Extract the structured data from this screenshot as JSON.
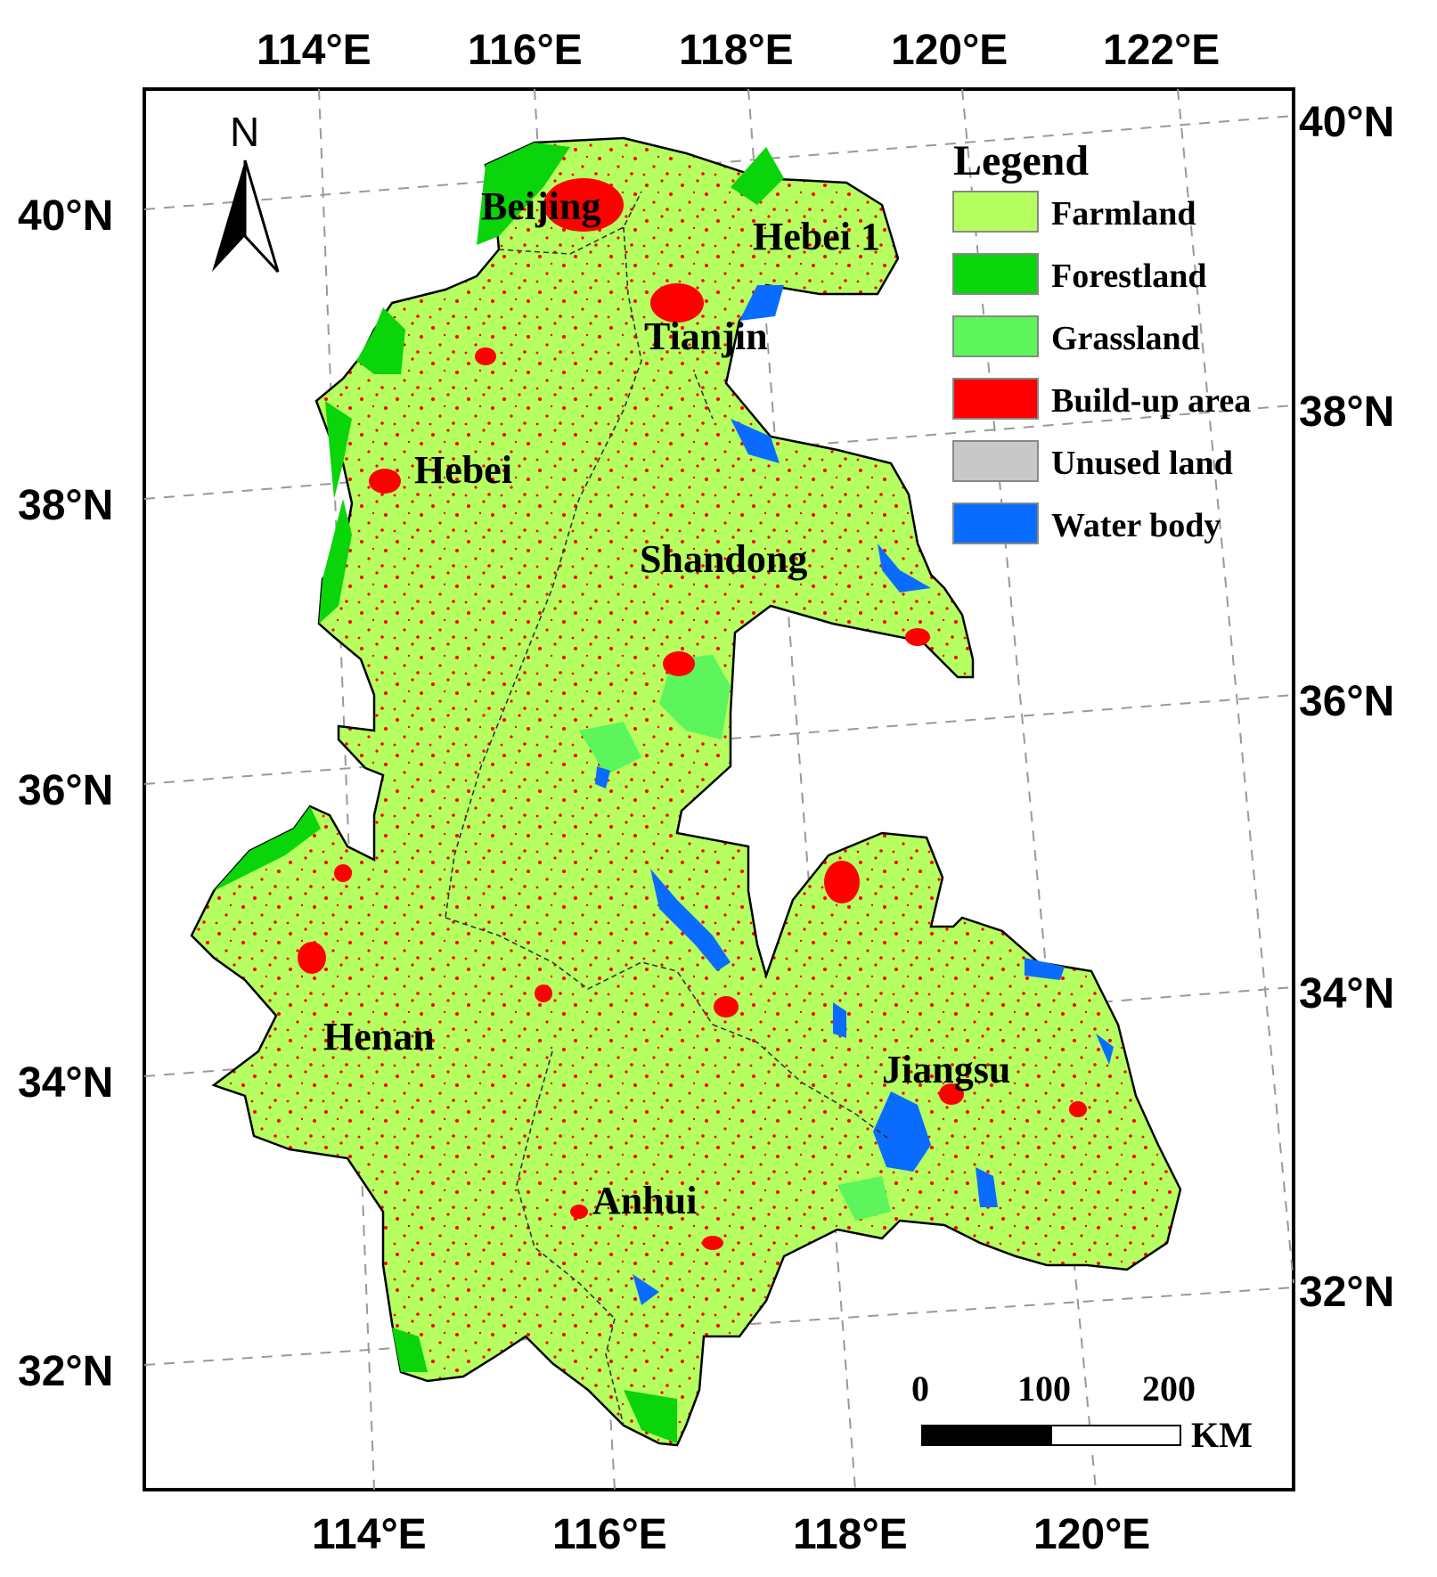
{
  "map": {
    "graticule_top": [
      "114°E",
      "116°E",
      "118°E",
      "120°E",
      "122°E"
    ],
    "graticule_bottom": [
      "114°E",
      "116°E",
      "118°E",
      "120°E"
    ],
    "graticule_left": [
      "40°N",
      "38°N",
      "36°N",
      "34°N",
      "32°N"
    ],
    "graticule_right": [
      "40°N",
      "38°N",
      "36°N",
      "34°N",
      "32°N"
    ],
    "north_arrow": {
      "letter": "N",
      "icon": "north-arrow-icon"
    },
    "regions": {
      "beijing": "Beijing",
      "hebei_ne": "Hebei 1",
      "tianjin": "Tianjin",
      "hebei": "Hebei",
      "shandong": "Shandong",
      "henan": "Henan",
      "jiangsu": "Jiangsu",
      "anhui": "Anhui"
    },
    "legend": {
      "title": "Legend",
      "items": [
        {
          "label": "Farmland",
          "color": "#b5ff60"
        },
        {
          "label": "Forestland",
          "color": "#0ad40a"
        },
        {
          "label": "Grassland",
          "color": "#5cf55c"
        },
        {
          "label": "Build-up area",
          "color": "#ff0000"
        },
        {
          "label": "Unused land",
          "color": "#c8c8c8"
        },
        {
          "label": "Water body",
          "color": "#0a6cff"
        }
      ]
    },
    "scale_bar": {
      "ticks": [
        "0",
        "100",
        "200"
      ],
      "unit": "KM"
    }
  }
}
